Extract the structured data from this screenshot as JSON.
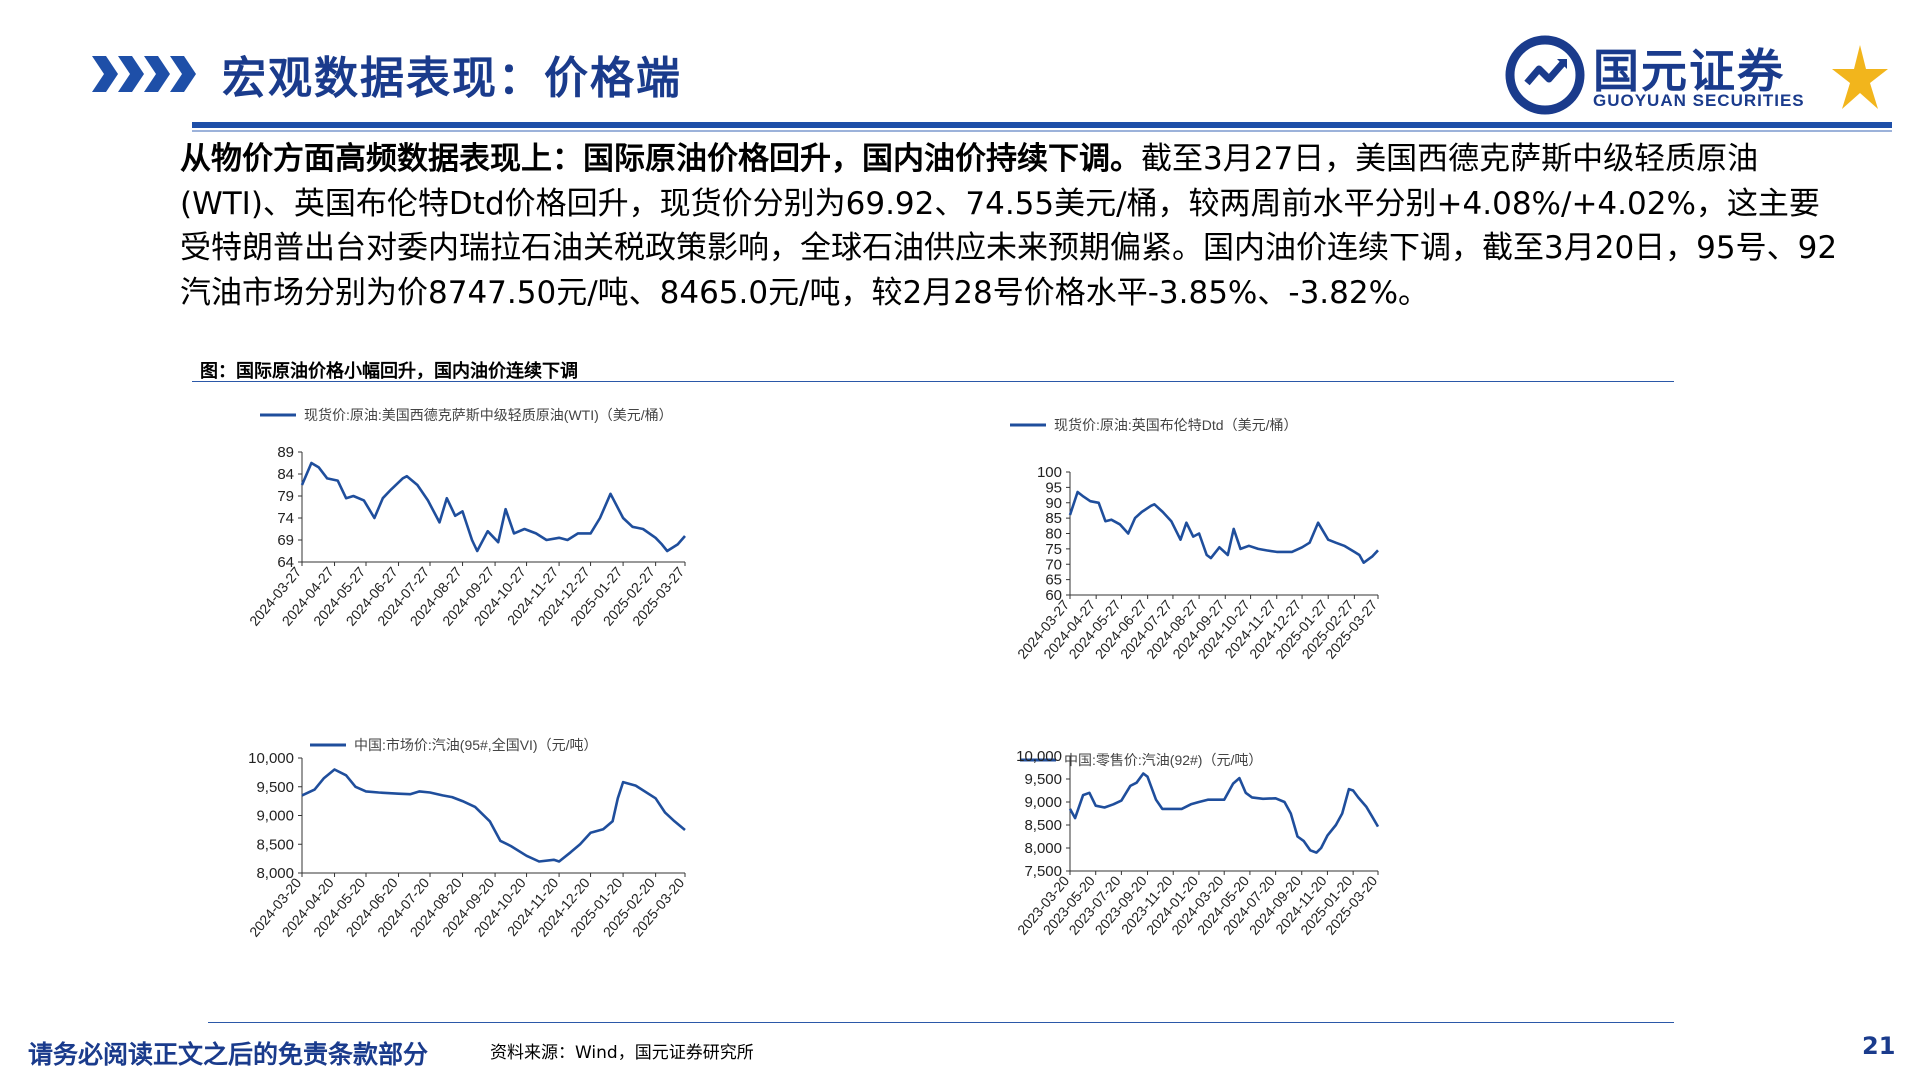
{
  "header": {
    "title": "宏观数据表现：价格端",
    "logo_name": "国元证券",
    "logo_en": "GUOYUAN SECURITIES"
  },
  "body": {
    "lead": "从物价方面高频数据表现上：国际原油价格回升，国内油价持续下调。",
    "text": "截至3月27日，美国西德克萨斯中级轻质原油(WTI)、英国布伦特Dtd价格回升，现货价分别为69.92、74.55美元/桶，较两周前水平分别+4.08%/+4.02%，这主要受特朗普出台对委内瑞拉石油关税政策影响，全球石油供应未来预期偏紧。国内油价连续下调，截至3月20日，95号、92汽油市场分别为价8747.50元/吨、8465.0元/吨，较2月28号价格水平-3.85%、-3.82%。"
  },
  "figure": {
    "caption": "图：国际原油价格小幅回升，国内油价连续下调"
  },
  "footer": {
    "disclaimer": "请务必阅读正文之后的免责条款部分",
    "source": "资料来源：Wind，国元证券研究所",
    "page_number": "21"
  },
  "colors": {
    "brand": "#1a3b8c",
    "line": "#1f4e9c",
    "accent": "#f2b51c"
  },
  "chart_data": [
    {
      "type": "line",
      "legend": "现货价:原油:美国西德克萨斯中级轻质原油(WTI)（美元/桶）",
      "x_ticks": [
        "2024-03-27",
        "2024-04-27",
        "2024-05-27",
        "2024-06-27",
        "2024-07-27",
        "2024-08-27",
        "2024-09-27",
        "2024-10-27",
        "2024-11-27",
        "2024-12-27",
        "2025-01-27",
        "2025-02-27",
        "2025-03-27"
      ],
      "y_ticks": [
        "89",
        "84",
        "79",
        "74",
        "69",
        "64"
      ],
      "ylim": [
        64,
        89
      ],
      "series": [
        {
          "x": [
            "2024-03-27",
            "2024-04-05",
            "2024-04-12",
            "2024-04-20",
            "2024-04-30",
            "2024-05-08",
            "2024-05-15",
            "2024-05-25",
            "2024-06-04",
            "2024-06-12",
            "2024-06-20",
            "2024-07-01",
            "2024-07-05",
            "2024-07-15",
            "2024-07-25",
            "2024-08-05",
            "2024-08-12",
            "2024-08-20",
            "2024-08-27",
            "2024-09-05",
            "2024-09-10",
            "2024-09-20",
            "2024-09-30",
            "2024-10-07",
            "2024-10-15",
            "2024-10-25",
            "2024-11-05",
            "2024-11-15",
            "2024-11-27",
            "2024-12-05",
            "2024-12-15",
            "2024-12-27",
            "2025-01-05",
            "2025-01-15",
            "2025-01-27",
            "2025-02-05",
            "2025-02-15",
            "2025-02-27",
            "2025-03-05",
            "2025-03-10",
            "2025-03-20",
            "2025-03-27"
          ],
          "y": [
            81.5,
            86.5,
            85.5,
            83.0,
            82.5,
            78.5,
            79.0,
            78.0,
            74.0,
            78.5,
            80.5,
            83.0,
            83.5,
            81.5,
            78.0,
            73.0,
            78.5,
            74.5,
            75.5,
            69.0,
            66.5,
            71.0,
            68.5,
            76.0,
            70.5,
            71.5,
            70.5,
            69.0,
            69.5,
            69.0,
            70.5,
            70.5,
            74.0,
            79.5,
            74.0,
            72.0,
            71.5,
            69.5,
            68.0,
            66.5,
            68.0,
            69.9
          ]
        }
      ]
    },
    {
      "type": "line",
      "legend": "现货价:原油:英国布伦特Dtd（美元/桶）",
      "x_ticks": [
        "2024-03-27",
        "2024-04-27",
        "2024-05-27",
        "2024-06-27",
        "2024-07-27",
        "2024-08-27",
        "2024-09-27",
        "2024-10-27",
        "2024-11-27",
        "2024-12-27",
        "2025-01-27",
        "2025-02-27",
        "2025-03-27"
      ],
      "y_ticks": [
        "100",
        "95",
        "90",
        "85",
        "80",
        "75",
        "70",
        "65",
        "60"
      ],
      "ylim": [
        60,
        100
      ],
      "series": [
        {
          "x": [
            "2024-03-27",
            "2024-04-05",
            "2024-04-12",
            "2024-04-20",
            "2024-04-30",
            "2024-05-08",
            "2024-05-15",
            "2024-05-25",
            "2024-06-04",
            "2024-06-12",
            "2024-06-20",
            "2024-07-01",
            "2024-07-05",
            "2024-07-15",
            "2024-07-25",
            "2024-08-05",
            "2024-08-12",
            "2024-08-20",
            "2024-08-27",
            "2024-09-05",
            "2024-09-10",
            "2024-09-20",
            "2024-09-30",
            "2024-10-07",
            "2024-10-15",
            "2024-10-25",
            "2024-11-05",
            "2024-11-15",
            "2024-11-27",
            "2024-12-05",
            "2024-12-15",
            "2024-12-27",
            "2025-01-05",
            "2025-01-15",
            "2025-01-27",
            "2025-02-05",
            "2025-02-15",
            "2025-02-27",
            "2025-03-05",
            "2025-03-10",
            "2025-03-20",
            "2025-03-27"
          ],
          "y": [
            86.0,
            93.5,
            92.0,
            90.5,
            90.0,
            84.0,
            84.5,
            83.0,
            80.0,
            85.0,
            87.0,
            89.0,
            89.5,
            87.0,
            84.0,
            78.0,
            83.5,
            79.0,
            80.0,
            73.0,
            72.0,
            75.5,
            73.0,
            81.5,
            75.0,
            76.0,
            75.0,
            74.5,
            74.0,
            74.0,
            74.0,
            75.5,
            77.0,
            83.5,
            78.0,
            77.0,
            76.0,
            74.0,
            73.0,
            70.5,
            72.5,
            74.55
          ]
        }
      ]
    },
    {
      "type": "line",
      "legend": "中国:市场价:汽油(95#,全国VI)（元/吨）",
      "x_ticks": [
        "2024-03-20",
        "2024-04-20",
        "2024-05-20",
        "2024-06-20",
        "2024-07-20",
        "2024-08-20",
        "2024-09-20",
        "2024-10-20",
        "2024-11-20",
        "2024-12-20",
        "2025-01-20",
        "2025-02-20",
        "2025-03-20"
      ],
      "y_ticks": [
        "10,000",
        "9,500",
        "9,000",
        "8,500",
        "8,000"
      ],
      "ylim": [
        8000,
        10000
      ],
      "series": [
        {
          "x": [
            "2024-03-20",
            "2024-04-01",
            "2024-04-10",
            "2024-04-20",
            "2024-05-01",
            "2024-05-10",
            "2024-05-20",
            "2024-06-01",
            "2024-06-20",
            "2024-07-01",
            "2024-07-10",
            "2024-07-20",
            "2024-08-01",
            "2024-08-10",
            "2024-08-20",
            "2024-09-01",
            "2024-09-15",
            "2024-09-25",
            "2024-10-05",
            "2024-10-20",
            "2024-11-01",
            "2024-11-15",
            "2024-11-20",
            "2024-12-01",
            "2024-12-10",
            "2024-12-20",
            "2025-01-01",
            "2025-01-10",
            "2025-01-15",
            "2025-01-20",
            "2025-02-01",
            "2025-02-20",
            "2025-03-01",
            "2025-03-10",
            "2025-03-20"
          ],
          "y": [
            9350,
            9450,
            9650,
            9800,
            9700,
            9500,
            9420,
            9400,
            9380,
            9370,
            9420,
            9400,
            9350,
            9320,
            9250,
            9150,
            8900,
            8560,
            8470,
            8300,
            8200,
            8230,
            8200,
            8360,
            8500,
            8700,
            8760,
            8900,
            9300,
            9580,
            9520,
            9300,
            9050,
            8900,
            8748
          ]
        }
      ]
    },
    {
      "type": "line",
      "legend": "中国:零售价:汽油(92#)（元/吨）",
      "x_ticks": [
        "2023-03-20",
        "2023-05-20",
        "2023-07-20",
        "2023-09-20",
        "2023-11-20",
        "2024-01-20",
        "2024-03-20",
        "2024-05-20",
        "2024-07-20",
        "2024-09-20",
        "2024-11-20",
        "2025-01-20",
        "2025-03-20"
      ],
      "y_ticks": [
        "10,000",
        "9,500",
        "9,000",
        "8,500",
        "8,000",
        "7,500"
      ],
      "ylim": [
        7500,
        10000
      ],
      "series": [
        {
          "x": [
            "2023-03-20",
            "2023-04-01",
            "2023-04-20",
            "2023-05-05",
            "2023-05-20",
            "2023-06-10",
            "2023-07-01",
            "2023-07-20",
            "2023-08-10",
            "2023-08-25",
            "2023-09-10",
            "2023-09-20",
            "2023-10-10",
            "2023-10-25",
            "2023-11-20",
            "2023-12-10",
            "2024-01-01",
            "2024-01-20",
            "2024-02-10",
            "2024-03-01",
            "2024-03-20",
            "2024-04-10",
            "2024-04-25",
            "2024-05-10",
            "2024-05-25",
            "2024-06-20",
            "2024-07-20",
            "2024-08-10",
            "2024-08-25",
            "2024-09-10",
            "2024-09-25",
            "2024-10-10",
            "2024-10-25",
            "2024-11-05",
            "2024-11-20",
            "2024-12-10",
            "2024-12-25",
            "2025-01-10",
            "2025-01-20",
            "2025-02-01",
            "2025-02-20",
            "2025-03-05",
            "2025-03-20"
          ],
          "y": [
            8850,
            8650,
            9150,
            9200,
            8920,
            8880,
            8950,
            9030,
            9350,
            9420,
            9620,
            9550,
            9050,
            8850,
            8850,
            8850,
            8950,
            9000,
            9050,
            9050,
            9050,
            9400,
            9520,
            9200,
            9100,
            9070,
            9080,
            9000,
            8750,
            8250,
            8150,
            7950,
            7900,
            8000,
            8270,
            8500,
            8750,
            9280,
            9250,
            9100,
            8900,
            8700,
            8465
          ]
        }
      ]
    }
  ]
}
